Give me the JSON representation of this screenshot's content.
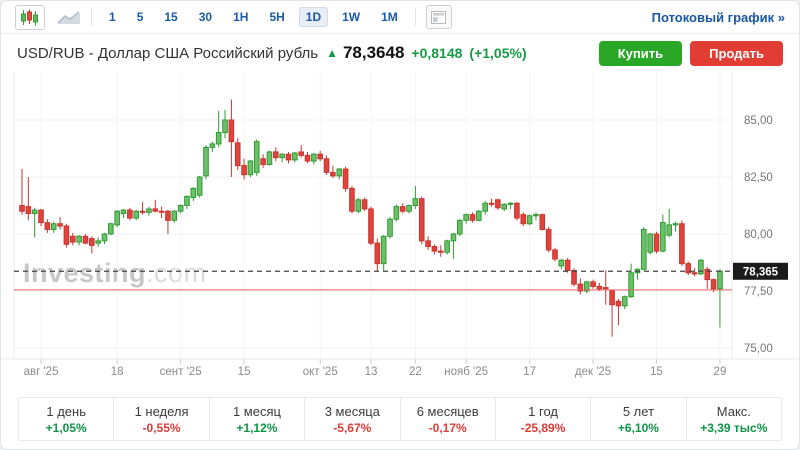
{
  "toolbar": {
    "chart_type": "candlestick",
    "timeframes": [
      "1",
      "5",
      "15",
      "30",
      "1H",
      "5H",
      "1D",
      "1W",
      "1M"
    ],
    "selected_timeframe": "1D",
    "streaming_label": "Потоковый график",
    "streaming_chevron": "»"
  },
  "header": {
    "title": "USD/RUB - Доллар США Российский рубль",
    "arrow": "▲",
    "price": "78,3648",
    "change": "+0,8148",
    "change_pct": "(+1,05%)",
    "buy_label": "Купить",
    "sell_label": "Продать"
  },
  "watermark": {
    "bold": "Investing",
    "light": ".com"
  },
  "chart_data": {
    "type": "candlestick",
    "pair": "USD/RUB",
    "interval": "1D",
    "ylim": [
      74.5,
      86.8
    ],
    "grid": true,
    "y_axis_labels": [
      "85,00",
      "82,50",
      "80,00",
      "77,50",
      "75,00"
    ],
    "y_axis_values": [
      85.0,
      82.5,
      80.0,
      77.5,
      75.0
    ],
    "x_ticks": [
      {
        "label": "авг '25",
        "index": 3
      },
      {
        "label": "18",
        "index": 15
      },
      {
        "label": "сент '25",
        "index": 25
      },
      {
        "label": "15",
        "index": 35
      },
      {
        "label": "окт '25",
        "index": 47
      },
      {
        "label": "13",
        "index": 55
      },
      {
        "label": "22",
        "index": 62
      },
      {
        "label": "нояб '25",
        "index": 70
      },
      {
        "label": "17",
        "index": 80
      },
      {
        "label": "дек '25",
        "index": 90
      },
      {
        "label": "15",
        "index": 100
      },
      {
        "label": "29",
        "index": 110
      }
    ],
    "last_price": 78.365,
    "last_price_label": "78,365",
    "prev_close": 77.55,
    "colors": {
      "up_fill": "#6cc069",
      "up_stroke": "#2f9b33",
      "down_fill": "#e1433e",
      "down_stroke": "#c9352f",
      "last_price_line": "#444444",
      "prev_close_line": "#ef6060",
      "badge_bg": "#1b1b1b",
      "badge_text": "#ffffff",
      "grid": "#f0f0f0",
      "axis": "#e8e8e8",
      "y_label": "#777777",
      "x_label": "#8a8a8a"
    },
    "candles": [
      [
        81.25,
        82.85,
        80.85,
        81.0
      ],
      [
        81.2,
        82.5,
        80.6,
        80.9
      ],
      [
        80.9,
        81.15,
        79.85,
        81.05
      ],
      [
        81.05,
        81.1,
        80.35,
        80.5
      ],
      [
        80.5,
        80.65,
        80.05,
        80.2
      ],
      [
        80.2,
        80.55,
        80.05,
        80.45
      ],
      [
        80.45,
        80.75,
        80.2,
        80.35
      ],
      [
        80.35,
        80.45,
        79.4,
        79.55
      ],
      [
        79.9,
        80.05,
        79.5,
        79.65
      ],
      [
        79.65,
        79.95,
        79.5,
        79.9
      ],
      [
        79.9,
        80.0,
        79.55,
        79.6
      ],
      [
        79.8,
        79.9,
        79.15,
        79.5
      ],
      [
        79.6,
        79.85,
        79.45,
        79.7
      ],
      [
        79.7,
        80.05,
        79.55,
        80.0
      ],
      [
        80.0,
        80.5,
        79.95,
        80.45
      ],
      [
        80.4,
        81.05,
        80.3,
        81.0
      ],
      [
        80.9,
        81.1,
        80.7,
        81.05
      ],
      [
        81.05,
        81.15,
        80.6,
        80.7
      ],
      [
        80.7,
        81.05,
        80.6,
        81.0
      ],
      [
        81.0,
        81.4,
        80.85,
        80.95
      ],
      [
        80.95,
        81.2,
        80.8,
        81.1
      ],
      [
        81.1,
        81.5,
        80.95,
        81.0
      ],
      [
        81.0,
        81.2,
        80.7,
        80.95
      ],
      [
        81.0,
        81.05,
        80.0,
        80.6
      ],
      [
        80.6,
        81.05,
        80.5,
        81.0
      ],
      [
        81.0,
        81.3,
        80.9,
        81.25
      ],
      [
        81.25,
        81.7,
        81.1,
        81.65
      ],
      [
        81.6,
        82.05,
        81.45,
        82.0
      ],
      [
        81.7,
        82.55,
        81.6,
        82.5
      ],
      [
        82.55,
        83.9,
        82.4,
        83.8
      ],
      [
        83.8,
        84.05,
        83.6,
        83.95
      ],
      [
        83.95,
        85.4,
        83.8,
        84.45
      ],
      [
        84.45,
        85.45,
        84.2,
        85.0
      ],
      [
        85.0,
        85.9,
        82.5,
        84.05
      ],
      [
        84.0,
        84.2,
        82.8,
        83.0
      ],
      [
        83.0,
        83.3,
        82.4,
        82.6
      ],
      [
        82.6,
        83.25,
        82.5,
        83.2
      ],
      [
        82.7,
        84.15,
        82.55,
        84.05
      ],
      [
        83.3,
        83.5,
        82.9,
        83.05
      ],
      [
        83.05,
        83.65,
        83.0,
        83.6
      ],
      [
        83.6,
        83.8,
        83.2,
        83.35
      ],
      [
        83.35,
        83.55,
        83.15,
        83.5
      ],
      [
        83.5,
        83.6,
        83.1,
        83.25
      ],
      [
        83.25,
        83.6,
        83.15,
        83.55
      ],
      [
        83.6,
        83.9,
        83.35,
        83.45
      ],
      [
        83.45,
        83.6,
        83.1,
        83.2
      ],
      [
        83.2,
        83.55,
        83.05,
        83.5
      ],
      [
        83.5,
        83.65,
        83.2,
        83.3
      ],
      [
        83.3,
        83.45,
        82.6,
        82.7
      ],
      [
        82.7,
        83.0,
        82.45,
        82.55
      ],
      [
        82.55,
        82.9,
        82.4,
        82.85
      ],
      [
        82.85,
        82.95,
        81.85,
        82.0
      ],
      [
        82.0,
        82.1,
        80.9,
        81.0
      ],
      [
        81.0,
        81.6,
        80.9,
        81.5
      ],
      [
        81.5,
        81.6,
        81.0,
        81.1
      ],
      [
        81.1,
        81.2,
        79.5,
        79.6
      ],
      [
        79.6,
        79.8,
        78.4,
        78.7
      ],
      [
        78.7,
        79.95,
        78.4,
        79.9
      ],
      [
        79.9,
        80.75,
        79.8,
        80.65
      ],
      [
        80.65,
        81.3,
        80.55,
        81.2
      ],
      [
        81.2,
        81.35,
        80.9,
        81.0
      ],
      [
        81.0,
        81.3,
        80.9,
        81.25
      ],
      [
        81.25,
        82.1,
        81.1,
        81.55
      ],
      [
        81.55,
        81.65,
        79.55,
        79.7
      ],
      [
        79.7,
        79.9,
        79.3,
        79.45
      ],
      [
        79.45,
        79.55,
        79.1,
        79.25
      ],
      [
        79.25,
        79.5,
        79.0,
        79.2
      ],
      [
        79.2,
        79.75,
        79.1,
        79.7
      ],
      [
        79.7,
        80.05,
        78.9,
        80.0
      ],
      [
        80.0,
        80.65,
        79.9,
        80.6
      ],
      [
        80.6,
        80.9,
        80.45,
        80.85
      ],
      [
        80.85,
        80.95,
        80.5,
        80.6
      ],
      [
        80.6,
        81.05,
        80.55,
        81.0
      ],
      [
        81.0,
        81.45,
        80.85,
        81.35
      ],
      [
        81.35,
        81.55,
        81.2,
        81.3
      ],
      [
        81.5,
        81.55,
        81.05,
        81.15
      ],
      [
        81.1,
        81.35,
        81.0,
        81.3
      ],
      [
        81.3,
        81.4,
        81.1,
        81.35
      ],
      [
        81.35,
        81.4,
        80.6,
        80.7
      ],
      [
        80.85,
        80.95,
        80.35,
        80.45
      ],
      [
        80.45,
        80.85,
        80.4,
        80.8
      ],
      [
        80.8,
        80.95,
        80.6,
        80.85
      ],
      [
        80.85,
        80.9,
        80.15,
        80.2
      ],
      [
        80.2,
        80.3,
        79.2,
        79.3
      ],
      [
        79.3,
        79.4,
        78.8,
        78.9
      ],
      [
        78.6,
        78.9,
        78.45,
        78.85
      ],
      [
        78.85,
        78.95,
        78.3,
        78.4
      ],
      [
        78.4,
        78.5,
        77.7,
        77.8
      ],
      [
        77.8,
        78.05,
        77.35,
        77.5
      ],
      [
        77.5,
        77.95,
        77.4,
        77.9
      ],
      [
        77.9,
        78.0,
        77.6,
        77.7
      ],
      [
        77.7,
        77.85,
        77.5,
        77.6
      ],
      [
        77.65,
        78.4,
        76.9,
        77.6
      ],
      [
        77.5,
        77.55,
        75.5,
        76.9
      ],
      [
        77.05,
        77.15,
        76.0,
        76.85
      ],
      [
        76.85,
        77.3,
        76.7,
        77.25
      ],
      [
        77.25,
        78.7,
        77.2,
        78.3
      ],
      [
        78.3,
        78.5,
        78.0,
        78.45
      ],
      [
        78.45,
        80.3,
        78.4,
        80.2
      ],
      [
        79.2,
        80.05,
        79.1,
        80.0
      ],
      [
        80.0,
        80.1,
        79.15,
        79.25
      ],
      [
        79.25,
        80.85,
        79.2,
        80.5
      ],
      [
        79.95,
        81.1,
        79.85,
        80.4
      ],
      [
        80.4,
        80.55,
        80.1,
        80.45
      ],
      [
        80.45,
        80.6,
        78.6,
        78.7
      ],
      [
        78.7,
        78.8,
        78.2,
        78.3
      ],
      [
        78.3,
        78.5,
        78.15,
        78.25
      ],
      [
        78.25,
        78.9,
        78.2,
        78.85
      ],
      [
        78.45,
        78.55,
        77.6,
        78.0
      ],
      [
        78.0,
        78.05,
        77.45,
        77.6
      ],
      [
        77.6,
        78.45,
        75.9,
        78.37
      ]
    ]
  },
  "performance": [
    {
      "label": "1 день",
      "value": "+1,05%",
      "direction": "up"
    },
    {
      "label": "1 неделя",
      "value": "-0,55%",
      "direction": "down"
    },
    {
      "label": "1 месяц",
      "value": "+1,12%",
      "direction": "up"
    },
    {
      "label": "3 месяца",
      "value": "-5,67%",
      "direction": "down"
    },
    {
      "label": "6 месяцев",
      "value": "-0,17%",
      "direction": "down"
    },
    {
      "label": "1 год",
      "value": "-25,89%",
      "direction": "down"
    },
    {
      "label": "5 лет",
      "value": "+6,10%",
      "direction": "up"
    },
    {
      "label": "Макс.",
      "value": "+3,39 тыс%",
      "direction": "up"
    }
  ],
  "buttons": {
    "buy_color": "#2aa727",
    "sell_color": "#e23d35"
  }
}
